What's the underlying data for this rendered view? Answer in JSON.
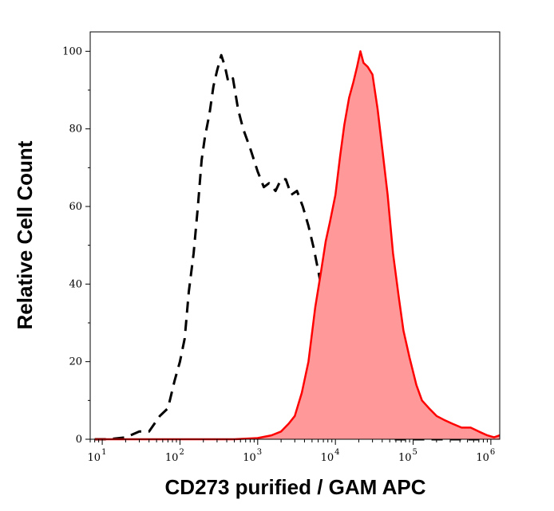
{
  "chart_data": {
    "type": "area",
    "xlabel": "CD273 purified / GAM APC",
    "ylabel": "Relative Cell Count",
    "x_scale": "log",
    "xlim": [
      7,
      1300000
    ],
    "ylim": [
      0,
      105
    ],
    "x_ticks": [
      {
        "base": "10",
        "exp": "1",
        "value": 10
      },
      {
        "base": "10",
        "exp": "2",
        "value": 100
      },
      {
        "base": "10",
        "exp": "3",
        "value": 1000
      },
      {
        "base": "10",
        "exp": "4",
        "value": 10000
      },
      {
        "base": "10",
        "exp": "5",
        "value": 100000
      },
      {
        "base": "10",
        "exp": "6",
        "value": 1000000
      }
    ],
    "y_ticks": [
      "0",
      "20",
      "40",
      "60",
      "80",
      "100"
    ],
    "y_tick_values": [
      0,
      20,
      40,
      60,
      80,
      100
    ],
    "grid": false,
    "series": [
      {
        "style": "dashed-line",
        "color": "#000000",
        "points": [
          [
            8,
            0
          ],
          [
            12,
            0
          ],
          [
            20,
            0.5
          ],
          [
            30,
            2
          ],
          [
            40,
            2
          ],
          [
            55,
            6
          ],
          [
            70,
            8
          ],
          [
            85,
            15
          ],
          [
            100,
            20
          ],
          [
            115,
            26
          ],
          [
            130,
            38
          ],
          [
            150,
            48
          ],
          [
            170,
            60
          ],
          [
            190,
            72
          ],
          [
            210,
            78
          ],
          [
            240,
            84
          ],
          [
            270,
            91
          ],
          [
            300,
            95
          ],
          [
            340,
            99
          ],
          [
            380,
            96
          ],
          [
            420,
            92
          ],
          [
            480,
            93
          ],
          [
            560,
            85
          ],
          [
            650,
            80
          ],
          [
            800,
            75
          ],
          [
            1000,
            69
          ],
          [
            1200,
            65
          ],
          [
            1400,
            66
          ],
          [
            1700,
            64
          ],
          [
            2000,
            67
          ],
          [
            2300,
            67
          ],
          [
            2700,
            63
          ],
          [
            3200,
            64
          ],
          [
            3800,
            60
          ],
          [
            4500,
            55
          ],
          [
            5300,
            49
          ],
          [
            6200,
            42
          ],
          [
            7300,
            35
          ],
          [
            8600,
            27
          ],
          [
            10000,
            20
          ],
          [
            12000,
            13
          ],
          [
            14000,
            8
          ],
          [
            17000,
            5
          ],
          [
            20000,
            2
          ],
          [
            25000,
            1
          ],
          [
            35000,
            0.5
          ],
          [
            60000,
            0
          ],
          [
            150000,
            0
          ],
          [
            300000,
            0
          ],
          [
            800000,
            0
          ]
        ]
      },
      {
        "style": "filled-area",
        "color": "#ff0000",
        "fill": "#ff9999",
        "points": [
          [
            8,
            0
          ],
          [
            500,
            0
          ],
          [
            1000,
            0.3
          ],
          [
            1500,
            1
          ],
          [
            2000,
            2
          ],
          [
            2500,
            4
          ],
          [
            3000,
            6
          ],
          [
            3700,
            12
          ],
          [
            4500,
            20
          ],
          [
            5500,
            34
          ],
          [
            6500,
            43
          ],
          [
            7500,
            51
          ],
          [
            8500,
            56
          ],
          [
            10000,
            63
          ],
          [
            11500,
            73
          ],
          [
            13000,
            81
          ],
          [
            15000,
            88
          ],
          [
            17000,
            92
          ],
          [
            19000,
            96
          ],
          [
            21000,
            100
          ],
          [
            23000,
            97
          ],
          [
            26000,
            96
          ],
          [
            30000,
            94
          ],
          [
            35000,
            85
          ],
          [
            40000,
            75
          ],
          [
            47000,
            63
          ],
          [
            55000,
            48
          ],
          [
            65000,
            37
          ],
          [
            75000,
            28
          ],
          [
            90000,
            21
          ],
          [
            110000,
            14
          ],
          [
            130000,
            10
          ],
          [
            160000,
            8
          ],
          [
            200000,
            6
          ],
          [
            250000,
            5
          ],
          [
            320000,
            4
          ],
          [
            420000,
            3
          ],
          [
            550000,
            3
          ],
          [
            700000,
            2
          ],
          [
            900000,
            1
          ],
          [
            1100000,
            0.5
          ],
          [
            1300000,
            1
          ]
        ]
      }
    ]
  }
}
